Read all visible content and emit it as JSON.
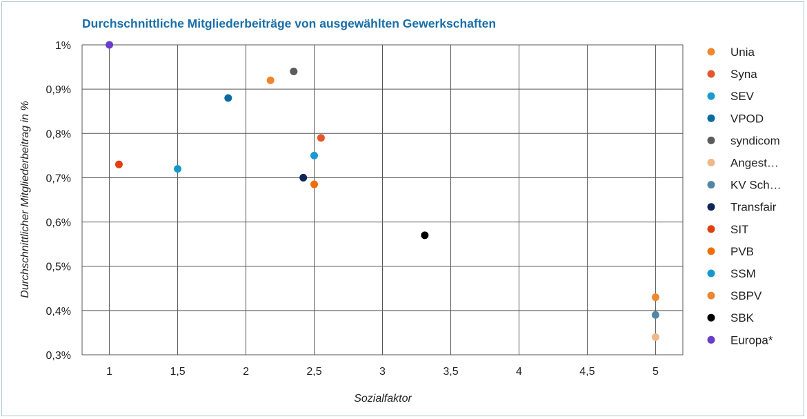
{
  "chart_data": {
    "type": "scatter",
    "title": "Durchschnittliche Mitgliederbeiträge von ausgewählten Gewerkschaften",
    "xlabel": "Sozialfaktor",
    "ylabel": "Durchschnittlicher Mitgliederbeitrag in %",
    "xlim": [
      0.8,
      5.2
    ],
    "ylim": [
      0.3,
      1.0
    ],
    "x_ticks": [
      1,
      1.5,
      2,
      2.5,
      3,
      3.5,
      4,
      4.5,
      5
    ],
    "x_tick_labels": [
      "1",
      "1,5",
      "2",
      "2,5",
      "3",
      "3,5",
      "4",
      "4,5",
      "5"
    ],
    "y_ticks": [
      0.3,
      0.4,
      0.5,
      0.6,
      0.7,
      0.8,
      0.9,
      1.0
    ],
    "y_tick_labels": [
      "0,3%",
      "0,4%",
      "0,5%",
      "0,6%",
      "0,7%",
      "0,8%",
      "0,9%",
      "1%"
    ],
    "grid": true,
    "legend_position": "right",
    "series": [
      {
        "name": "Unia",
        "color": "#f0882f",
        "x": 5,
        "y": 0.43
      },
      {
        "name": "Syna",
        "color": "#e2562a",
        "x": 2.55,
        "y": 0.79
      },
      {
        "name": "SEV",
        "color": "#1a9ad1",
        "x": 2.5,
        "y": 0.75
      },
      {
        "name": "VPOD",
        "color": "#0b6aa2",
        "x": 1.87,
        "y": 0.88
      },
      {
        "name": "syndicom",
        "color": "#5c5c5c",
        "x": 2.35,
        "y": 0.94
      },
      {
        "name": "Angest…",
        "color": "#f0b88a",
        "x": 5,
        "y": 0.34
      },
      {
        "name": "KV Sch…",
        "color": "#5386a6",
        "x": 5,
        "y": 0.39
      },
      {
        "name": "Transfair",
        "color": "#0e2557",
        "x": 2.42,
        "y": 0.7
      },
      {
        "name": "SIT",
        "color": "#e0400f",
        "x": 1.07,
        "y": 0.73
      },
      {
        "name": "PVB",
        "color": "#ee6f0a",
        "x": 2.5,
        "y": 0.685
      },
      {
        "name": "SSM",
        "color": "#1598cc",
        "x": 1.5,
        "y": 0.72
      },
      {
        "name": "SBPV",
        "color": "#f0852f",
        "x": 2.18,
        "y": 0.92
      },
      {
        "name": "SBK",
        "color": "#000000",
        "x": 3.31,
        "y": 0.57
      },
      {
        "name": "Europa*",
        "color": "#6a3dc9",
        "x": 1,
        "y": 1.0
      }
    ]
  }
}
